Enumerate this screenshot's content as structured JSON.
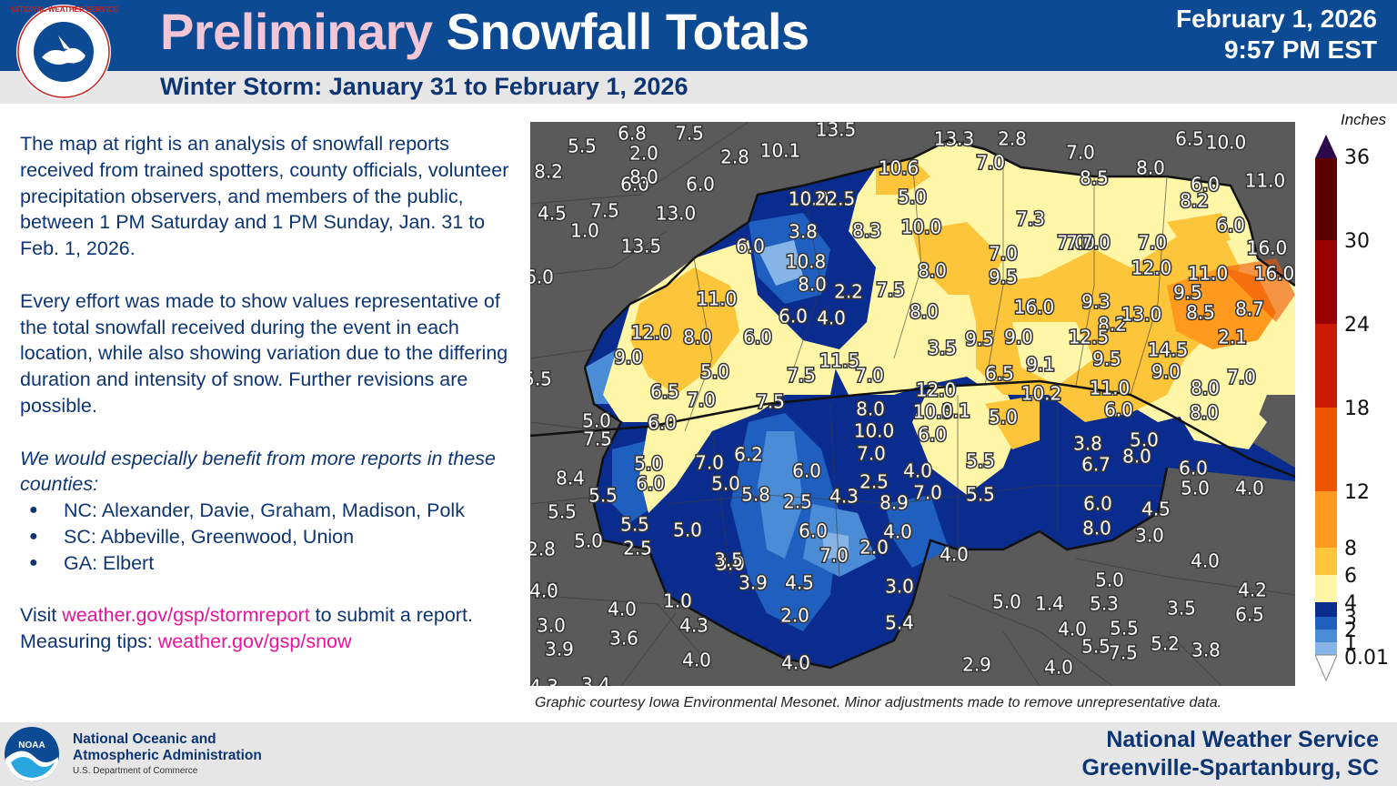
{
  "header": {
    "title_part1": "Preliminary",
    "title_part2": "Snowfall Totals",
    "date": "February 1, 2026",
    "time": "9:57 PM EST",
    "subtitle": "Winter Storm:  January 31 to February 1, 2026",
    "logo_text": "NATIONAL WEATHER SERVICE"
  },
  "body": {
    "para1": "The map at right is an analysis of snowfall reports received from trained spotters, county officials, volunteer precipitation observers, and members of the public, between 1 PM Saturday and 1 PM Sunday, Jan. 31 to Feb. 1, 2026.",
    "para2": "Every effort was made to show values representative of the total snowfall received during the event in each location, while also showing variation due to the differing duration and intensity of snow.  Further revisions are possible.",
    "request": "We would especially benefit from more reports in these counties:",
    "counties": [
      "NC:  Alexander, Davie, Graham, Madison, Polk",
      "SC:  Abbeville, Greenwood, Union",
      "GA:  Elbert"
    ],
    "visit_prefix": "Visit ",
    "visit_link": "weather.gov/gsp/stormreport",
    "visit_suffix": " to submit a report.  Measuring tips:  ",
    "tips_link": "weather.gov/gsp/snow"
  },
  "map": {
    "credit": "Graphic courtesy Iowa Environmental Mesonet.  Minor adjustments made to remove unrepresentative data.",
    "labels": [
      "6.8",
      "7.5",
      "13.5",
      "6.0",
      "13.3",
      "2.8",
      "7.0",
      "6.5",
      "10.0",
      "5.5",
      "2.0",
      "2.8",
      "10.1",
      "8.2",
      "8.0",
      "6.0",
      "10.6",
      "7.0",
      "8.5",
      "8.0",
      "6.0",
      "11.0",
      "4.5",
      "7.5",
      "1.0",
      "13.0",
      "10.0",
      "22.5",
      "5.0",
      "8.2",
      "6.0",
      "13.5",
      "3.8",
      "8.3",
      "10.0",
      "7.3",
      "7.0",
      "6.0",
      "7.0",
      "7.0",
      "7.0",
      "7.0",
      "16.0",
      "10.8",
      "8.0",
      "9.5",
      "8.0",
      "12.0",
      "11.0",
      "16.0",
      "6.0",
      "11.0",
      "8.2",
      "2.2",
      "7.5",
      "9.3",
      "9.5",
      "13.0",
      "8.7",
      "6.0",
      "4.0",
      "8.0",
      "16.0",
      "8.5",
      "12.0",
      "8.0",
      "6.0",
      "3.5",
      "9.5",
      "9.0",
      "12.5",
      "14.5",
      "2.1",
      "9.0",
      "5.0",
      "11.5",
      "9.5",
      "6.5",
      "9.1",
      "9.0",
      "7.0",
      "5.5",
      "7.5",
      "7.0",
      "12.0",
      "11.0",
      "8.0",
      "6.5",
      "10.2",
      "7.0",
      "7.5",
      "8.0",
      "6.0",
      "10.5",
      "0.1",
      "8.0",
      "5.0",
      "6.0",
      "5.0",
      "7.5",
      "10.0",
      "6.0",
      "3.8",
      "5.0",
      "7.0",
      "6.2",
      "5.5",
      "8.0",
      "7.0",
      "5.0",
      "4.0",
      "6.7",
      "6.0",
      "6.0",
      "8.4",
      "6.0",
      "2.5",
      "7.0",
      "5.5",
      "5.0",
      "4.0",
      "5.0",
      "5.5",
      "5.8",
      "4.3",
      "8.9",
      "2.5",
      "6.0",
      "4.5",
      "5.5",
      "5.5",
      "4.0",
      "8.0",
      "3.0",
      "5.0",
      "6.0",
      "2.8",
      "5.0",
      "2.0",
      "4.0",
      "7.0",
      "3.0",
      "2.5",
      "3.9",
      "4.5",
      "3.0",
      "5.0",
      "4.0",
      "3.5",
      "4.5",
      "4.0",
      "4.0",
      "1.0",
      "5.0",
      "1.4",
      "5.3",
      "3.5",
      "6.5",
      "4.2",
      "3.0",
      "4.3",
      "2.0",
      "5.4",
      "4.0",
      "5.5",
      "5.2",
      "3.9",
      "3.6",
      "4.0",
      "5.5",
      "7.5",
      "3.8",
      "4.0",
      "4.0",
      "2.9",
      "4.3",
      "3.4"
    ]
  },
  "legend": {
    "title": "Inches",
    "ticks": [
      "36",
      "30",
      "24",
      "18",
      "12",
      "8",
      "6",
      "4",
      "3",
      "2",
      "1",
      "0.01"
    ],
    "colors": [
      "#2c0a4b",
      "#5c0000",
      "#9a0000",
      "#cc1a00",
      "#ee5500",
      "#ff9a1e",
      "#fdc63a",
      "#fff6a8",
      "#0a2c8f",
      "#1f5fbf",
      "#4b8cd6",
      "#86b4e6",
      "#b8d6f2"
    ]
  },
  "footer": {
    "noaa_line1": "National Oceanic and",
    "noaa_line2": "Atmospheric Administration",
    "noaa_line3": "U.S. Department of Commerce",
    "nws_line1": "National Weather Service",
    "nws_line2": "Greenville-Spartanburg, SC",
    "noaa_badge": "NOAA"
  }
}
